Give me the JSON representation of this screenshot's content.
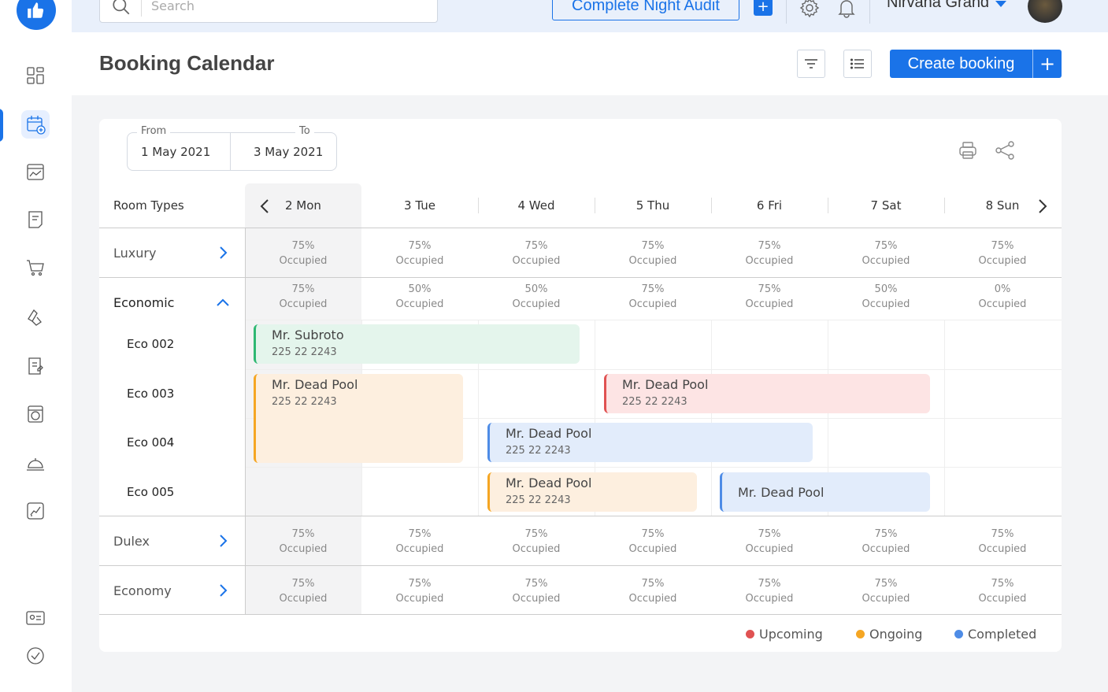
{
  "topbar": {
    "search_placeholder": "Search",
    "night_audit_label": "Complete Night Audit",
    "add_label": "+",
    "hotel_name": "Nirvana Grand"
  },
  "page": {
    "title": "Booking Calendar",
    "create_label": "Create booking",
    "create_plus": "+"
  },
  "dates": {
    "from_label": "From",
    "from_value": "1 May 2021",
    "to_label": "To",
    "to_value": "3 May 2021"
  },
  "calendar": {
    "room_types_label": "Room Types",
    "days": [
      "2 Mon",
      "3 Tue",
      "4 Wed",
      "5 Thu",
      "6 Fri",
      "7 Sat",
      "8 Sun"
    ],
    "occupied_word": "Occupied",
    "types": [
      {
        "name": "Luxury",
        "occupancy": [
          "75%",
          "75%",
          "75%",
          "75%",
          "75%",
          "75%",
          "75%"
        ]
      },
      {
        "name": "Economic",
        "occupancy": [
          "75%",
          "50%",
          "50%",
          "75%",
          "75%",
          "50%",
          "0%"
        ]
      },
      {
        "name": "Dulex",
        "occupancy": [
          "75%",
          "75%",
          "75%",
          "75%",
          "75%",
          "75%",
          "75%"
        ]
      },
      {
        "name": "Economy",
        "occupancy": [
          "75%",
          "75%",
          "75%",
          "75%",
          "75%",
          "75%",
          "75%"
        ]
      }
    ],
    "rooms": [
      "Eco 002",
      "Eco 003",
      "Eco 004",
      "Eco 005"
    ],
    "bookings": [
      {
        "name": "Mr. Subroto",
        "phone": "225 22 2243",
        "status": "checked-in",
        "color": "#2eb872"
      },
      {
        "name": "Mr. Dead Pool",
        "phone": "225 22 2243",
        "status": "ongoing",
        "color": "#f5a623"
      },
      {
        "name": "Mr. Dead Pool",
        "phone": "225 22 2243",
        "status": "upcoming",
        "color": "#e05252"
      },
      {
        "name": "Mr. Dead Pool",
        "phone": "225 22 2243",
        "status": "completed",
        "color": "#4e8ce6"
      },
      {
        "name": "Mr. Dead Pool",
        "phone": "225 22 2243",
        "status": "ongoing",
        "color": "#f5a623"
      },
      {
        "name": "Mr. Dead Pool",
        "status": "completed",
        "color": "#4e8ce6"
      }
    ]
  },
  "legend": [
    {
      "label": "Upcoming",
      "color": "#e05252"
    },
    {
      "label": "Ongoing",
      "color": "#f5a623"
    },
    {
      "label": "Completed",
      "color": "#4e8ce6"
    }
  ],
  "sidebar": {
    "icons": [
      "dashboard-icon",
      "booking-calendar-icon",
      "analytics-calendar-icon",
      "guest-notes-icon",
      "cart-icon",
      "housekeeping-icon",
      "reports-icon",
      "laundry-icon",
      "room-service-icon",
      "growth-chart-icon",
      "contacts-icon",
      "tasks-icon"
    ]
  }
}
